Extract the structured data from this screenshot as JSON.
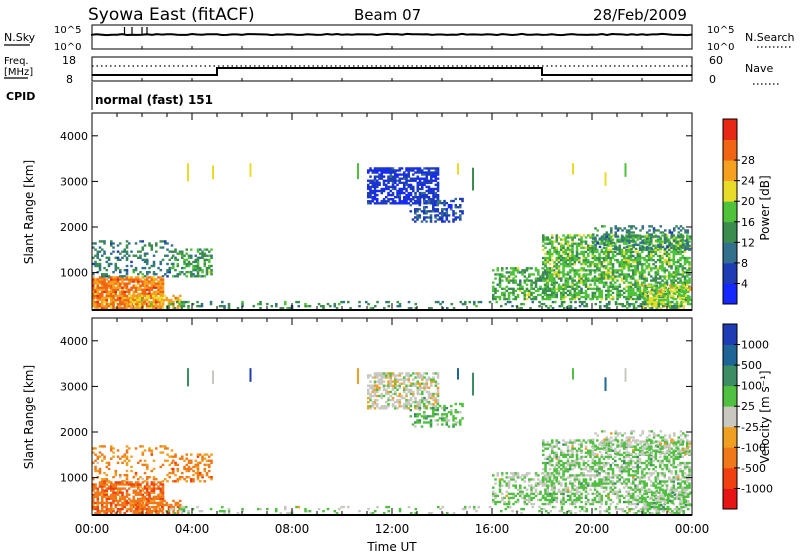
{
  "header": {
    "title": "Syowa East (fitACF)",
    "beam": "Beam 07",
    "date": "28/Feb/2009"
  },
  "params": {
    "nsky_label": "N.Sky",
    "nsky_ticks": [
      "10^5",
      "10^0"
    ],
    "nsearch_label": "N.Search",
    "nsearch_ticks": [
      "10^5",
      "10^0"
    ],
    "freq_label_1": "Freq.",
    "freq_label_2": "[MHz]",
    "freq_ticks": [
      "18",
      "8"
    ],
    "nave_label": "Nave",
    "nave_ticks": [
      "60",
      "0"
    ],
    "cpid_label": "CPID",
    "cpid_value": "normal (fast) 151"
  },
  "chart_data": [
    {
      "type": "heatmap",
      "title": "",
      "xlabel": "Time UT",
      "ylabel": "Slant Range [km]",
      "x_ticks": [
        "00:00",
        "04:00",
        "08:00",
        "12:00",
        "16:00",
        "20:00",
        "00:00"
      ],
      "y_ticks": [
        1000,
        2000,
        3000,
        4000
      ],
      "xlim_hours": [
        0,
        24
      ],
      "ylim_km": [
        180,
        4500
      ],
      "colorbar": {
        "label": "Power [dB]",
        "ticks": [
          "4",
          "8",
          "12",
          "16",
          "20",
          "24",
          "28"
        ],
        "colors": [
          "#1428ff",
          "#1e3cb4",
          "#33708c",
          "#3c8c50",
          "#4ec33a",
          "#e8dc28",
          "#f5a01e",
          "#f06414",
          "#e62814"
        ]
      }
    },
    {
      "type": "heatmap",
      "title": "",
      "xlabel": "Time UT",
      "ylabel": "Slant Range [km]",
      "x_ticks": [
        "00:00",
        "04:00",
        "08:00",
        "12:00",
        "16:00",
        "20:00",
        "00:00"
      ],
      "y_ticks": [
        1000,
        2000,
        3000,
        4000
      ],
      "xlim_hours": [
        0,
        24
      ],
      "ylim_km": [
        180,
        4500
      ],
      "colorbar": {
        "label": "Velocity [m s⁻¹]",
        "ticks": [
          "1000",
          "500",
          "100",
          "25",
          "-25",
          "-100",
          "-500",
          "-1000"
        ],
        "colors": [
          "#1e3cb4",
          "#1e6496",
          "#3c8c64",
          "#50c040",
          "#c8c8c0",
          "#f0a020",
          "#f07818",
          "#f04010",
          "#e61414"
        ]
      }
    }
  ],
  "footer": {
    "xlabel": "Time UT"
  },
  "palette": {
    "power": [
      "#1428ff",
      "#1e3cb4",
      "#33708c",
      "#3c8c50",
      "#4ec33a",
      "#e8dc28",
      "#f5a01e",
      "#f06414",
      "#e62814"
    ],
    "velocity": [
      "#1e3cb4",
      "#1e6496",
      "#3c8c64",
      "#50c040",
      "#c8c8c0",
      "#f0a020",
      "#f07818",
      "#f04010",
      "#e61414"
    ]
  }
}
